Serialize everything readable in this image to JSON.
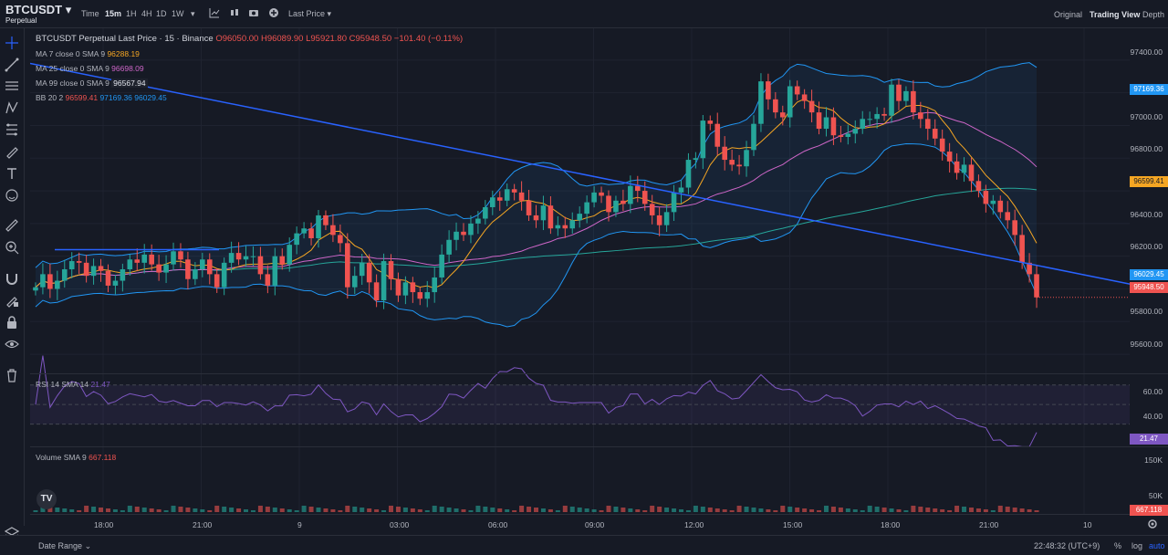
{
  "header": {
    "symbol": "BTCUSDT",
    "subtitle": "Perpetual",
    "timeframes": [
      "Time",
      "15m",
      "1H",
      "4H",
      "1D",
      "1W"
    ],
    "active_timeframe": "15m",
    "price_source": "Last Price",
    "tabs": [
      "Original",
      "Trading View",
      "Depth"
    ],
    "active_tab": "Trading View"
  },
  "left_toolbar": {
    "icons": [
      "crosshair-icon",
      "trendline-icon",
      "horizontal-lines-icon",
      "pattern-icon",
      "fib-icon",
      "brush-icon",
      "text-icon",
      "emoji-icon",
      "ruler-icon",
      "zoom-icon",
      "magnet-icon",
      "lock-drawing-icon",
      "lock-icon",
      "eye-icon",
      "trash-icon"
    ]
  },
  "legend": {
    "main": "BTCUSDT Perpetual Last Price · 15 · Binance",
    "o": "O96050.00",
    "h": "H96089.90",
    "l": "L95921.80",
    "c": "C95948.50",
    "chg": "−101.40 (−0.11%)",
    "ma7_label": "MA 7 close 0 SMA 9",
    "ma7_value": "96288.19",
    "ma25_label": "MA 25 close 0 SMA 9",
    "ma25_value": "96698.09",
    "ma99_label": "MA 99 close 0 SMA 9",
    "ma99_value": "96567.94",
    "bb_label": "BB 20 2",
    "bb_basis": "96599.41",
    "bb_upper": "97169.36",
    "bb_lower": "96029.45",
    "rsi_label": "RSI 14 SMA 14",
    "rsi_value": "21.47",
    "vol_label": "Volume SMA 9",
    "vol_value": "667.118"
  },
  "price_axis": {
    "labels": [
      "97400.00",
      "97000.00",
      "96800.00",
      "96400.00",
      "96200.00",
      "95800.00",
      "95600.00"
    ],
    "tags": {
      "bb_upper": "97169.36",
      "bb_basis": "96599.41",
      "bb_lower": "96029.45",
      "last": "95948.50"
    },
    "rsi_labels": [
      "60.00",
      "40.00"
    ],
    "rsi_tag": "21.47",
    "vol_labels": [
      "150K",
      "50K"
    ],
    "vol_tag": "667.118"
  },
  "time_axis": {
    "labels": [
      "18:00",
      "21:00",
      "9",
      "03:00",
      "06:00",
      "09:00",
      "12:00",
      "15:00",
      "18:00",
      "21:00",
      "10"
    ]
  },
  "bottom": {
    "date_range": "Date Range",
    "clock": "22:48:32 (UTC+9)",
    "pct": "%",
    "log": "log",
    "auto": "auto"
  },
  "colors": {
    "up": "#26a69a",
    "down": "#ef5350",
    "ma7": "#f5a623",
    "ma25": "#ce66c8",
    "ma99": "#9aa3ff",
    "bb": "#2962ff",
    "trendline": "#2962ff",
    "rsi": "#7e57c2"
  },
  "chart_data": {
    "type": "candlestick",
    "y_range": [
      95500,
      97550
    ],
    "closes": [
      96010,
      96090,
      96000,
      96050,
      96120,
      96170,
      96160,
      96080,
      96140,
      96110,
      96020,
      96050,
      96120,
      96180,
      96160,
      96210,
      96150,
      96100,
      96150,
      96230,
      96180,
      96060,
      96120,
      96180,
      96090,
      96010,
      96160,
      96220,
      96180,
      96200,
      96200,
      96090,
      96020,
      96200,
      96150,
      96270,
      96340,
      96370,
      96310,
      96450,
      96390,
      96330,
      96280,
      96010,
      96080,
      96160,
      96040,
      95930,
      96170,
      96060,
      95960,
      96040,
      95980,
      95940,
      95980,
      96070,
      96210,
      96300,
      96350,
      96330,
      96400,
      96430,
      96500,
      96560,
      96540,
      96610,
      96590,
      96540,
      96450,
      96420,
      96510,
      96370,
      96390,
      96370,
      96420,
      96460,
      96530,
      96590,
      96570,
      96470,
      96540,
      96520,
      96630,
      96600,
      96520,
      96450,
      96390,
      96470,
      96590,
      96620,
      96790,
      96800,
      97030,
      97010,
      96870,
      96790,
      96760,
      96750,
      96850,
      97010,
      97270,
      97160,
      97080,
      97050,
      97240,
      97190,
      97150,
      97080,
      96980,
      97050,
      96940,
      96930,
      96950,
      96980,
      97040,
      97040,
      97070,
      97060,
      97250,
      97150,
      97210,
      97080,
      97040,
      96980,
      96920,
      96840,
      96780,
      96710,
      96760,
      96660,
      96600,
      96520,
      96540,
      96470,
      96420,
      96330,
      96160,
      96090,
      95948
    ]
  }
}
